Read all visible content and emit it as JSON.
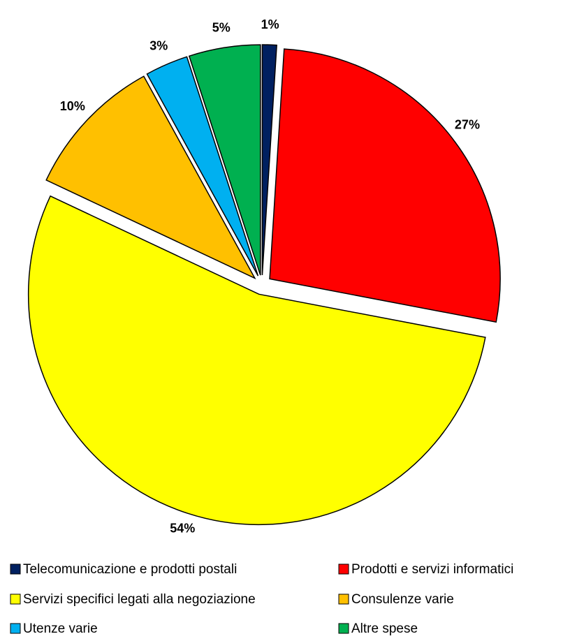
{
  "chart_data": {
    "type": "pie",
    "categories": [
      "Telecomunicazione e prodotti postali",
      "Prodotti e servizi informatici",
      "Servizi specifici legati alla negoziazione",
      "Consulenze varie",
      "Utenze varie",
      "Altre spese"
    ],
    "values": [
      1,
      27,
      54,
      10,
      3,
      5
    ],
    "value_labels": [
      "1%",
      "27%",
      "54%",
      "10%",
      "3%",
      "5%"
    ],
    "colors": [
      "#002060",
      "#ff0000",
      "#ffff00",
      "#ffc000",
      "#00b0f0",
      "#00b050"
    ]
  }
}
